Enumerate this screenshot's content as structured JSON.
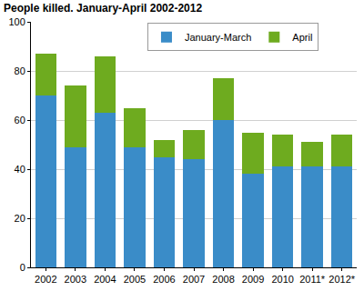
{
  "chart_data": {
    "type": "bar",
    "title": "People killed. January-April 2002-2012",
    "categories": [
      "2002",
      "2003",
      "2004",
      "2005",
      "2006",
      "2007",
      "2008",
      "2009",
      "2010",
      "2011*",
      "2012*"
    ],
    "series": [
      {
        "name": "January-March",
        "color": "#3a8cc8",
        "values": [
          70,
          49,
          63,
          49,
          45,
          44,
          60,
          38,
          41,
          41,
          41
        ]
      },
      {
        "name": "April",
        "color": "#6eab1f",
        "values": [
          17,
          25,
          23,
          16,
          7,
          12,
          17,
          17,
          13,
          10,
          13
        ]
      }
    ],
    "stacked": true,
    "ylim": [
      0,
      100
    ],
    "yticks": [
      0,
      20,
      40,
      60,
      80,
      100
    ],
    "grid": true,
    "legend": "top"
  }
}
